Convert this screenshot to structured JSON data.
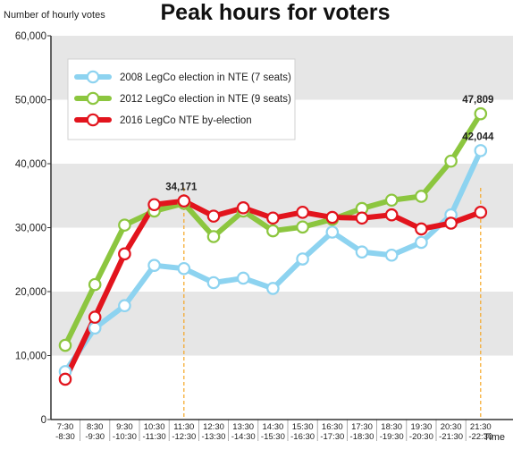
{
  "chart_data": {
    "type": "line",
    "title": "Peak hours for voters",
    "ylabel": "Number of hourly votes",
    "xlabel": "Time",
    "ylim": [
      0,
      60000
    ],
    "yticks": [
      "0",
      "10,000",
      "20,000",
      "30,000",
      "40,000",
      "50,000",
      "60,000"
    ],
    "ytick_values": [
      0,
      10000,
      20000,
      30000,
      40000,
      50000,
      60000
    ],
    "categories": [
      [
        "7:30",
        "-8:30"
      ],
      [
        "8:30",
        "-9:30"
      ],
      [
        "9:30",
        "-10:30"
      ],
      [
        "10:30",
        "-11:30"
      ],
      [
        "11:30",
        "-12:30"
      ],
      [
        "12:30",
        "-13:30"
      ],
      [
        "13:30",
        "-14:30"
      ],
      [
        "14:30",
        "-15:30"
      ],
      [
        "15:30",
        "-16:30"
      ],
      [
        "16:30",
        "-17:30"
      ],
      [
        "17:30",
        "-18:30"
      ],
      [
        "18:30",
        "-19:30"
      ],
      [
        "19:30",
        "-20:30"
      ],
      [
        "20:30",
        "-21:30"
      ],
      [
        "21:30",
        "-22:30"
      ]
    ],
    "grid": "alternating horizontal bands",
    "legend_position": "top-left",
    "series": [
      {
        "name": "2008 LegCo election in NTE (7 seats)",
        "color": "#8dd3f0",
        "values": [
          7500,
          14300,
          17800,
          24100,
          23600,
          21400,
          22100,
          20500,
          25100,
          29300,
          26200,
          25700,
          27700,
          32000,
          42044
        ]
      },
      {
        "name": "2012 LegCo election in NTE (9 seats)",
        "color": "#8cc63f",
        "values": [
          11600,
          21100,
          30400,
          32600,
          33800,
          28600,
          32600,
          29500,
          30100,
          31300,
          33000,
          34300,
          34900,
          40400,
          47809
        ]
      },
      {
        "name": "2016 LegCo NTE by-election",
        "color": "#e2141d",
        "values": [
          6300,
          16000,
          25900,
          33600,
          34171,
          31800,
          33100,
          31500,
          32400,
          31600,
          31500,
          32000,
          29800,
          30700,
          32400
        ]
      }
    ],
    "annotations": [
      {
        "text": "34,171",
        "category_index": 4,
        "value": 34171
      },
      {
        "text": "47,809",
        "category_index": 14,
        "value": 47809
      },
      {
        "text": "42,044",
        "category_index": 14,
        "value": 42044
      }
    ],
    "reference_lines": [
      {
        "category_index": 4,
        "color": "#f5a623"
      },
      {
        "category_index": 14,
        "color": "#f5a623"
      }
    ]
  }
}
